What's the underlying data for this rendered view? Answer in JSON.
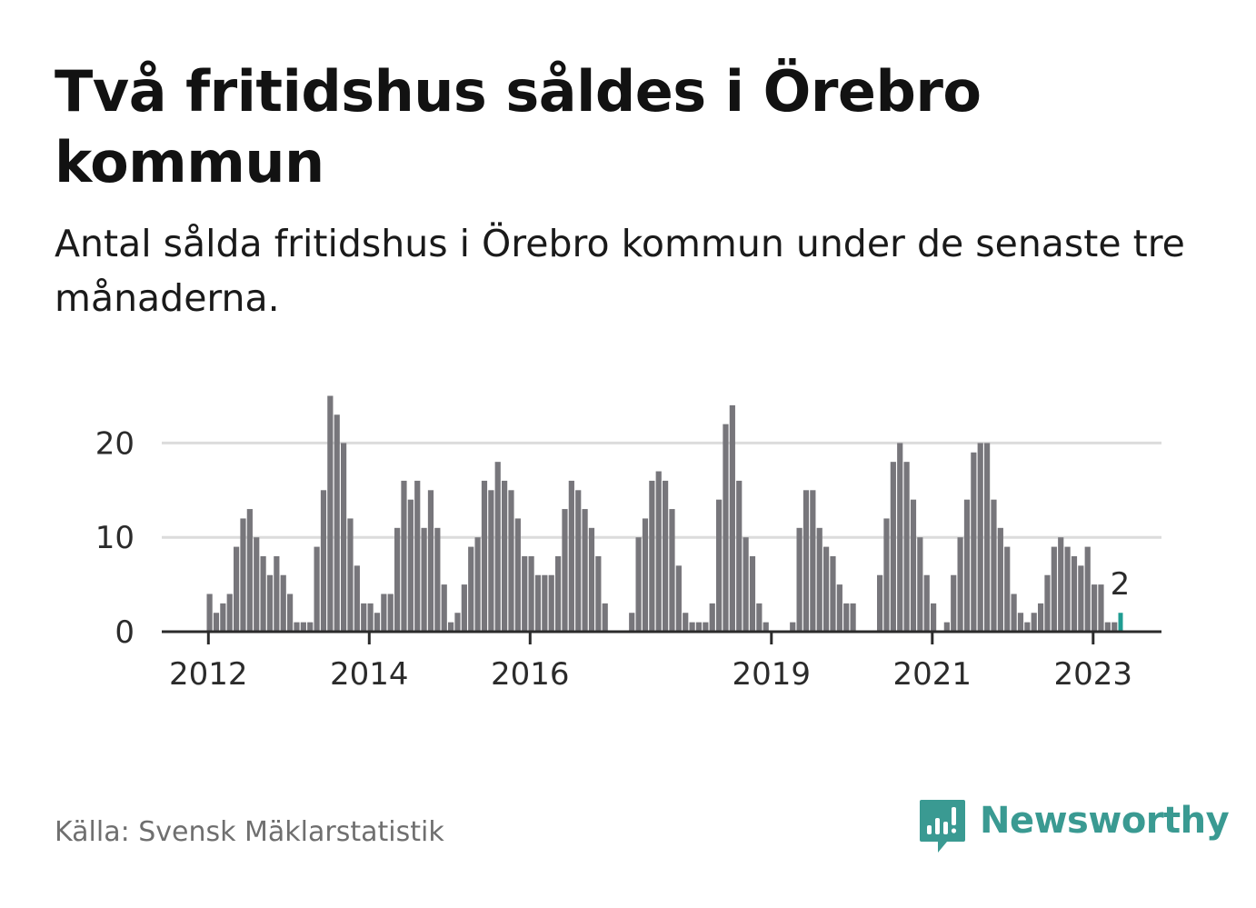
{
  "title": "Två fritidshus såldes i Örebro kommun",
  "subtitle": "Antal sålda fritidshus i Örebro kommun under de senaste tre månaderna.",
  "source": "Källa: Svensk Mäklarstatistik",
  "brand": {
    "name": "Newsworthy",
    "icon": "newsworthy-bar-chart-icon",
    "color": "#3a9a92"
  },
  "chart_data": {
    "type": "bar",
    "x_unit": "month",
    "start_month": "2011-06",
    "y_ticks": [
      0,
      10,
      20
    ],
    "x_ticks": [
      "2012",
      "2014",
      "2016",
      "2019",
      "2021",
      "2023"
    ],
    "ylim": [
      0,
      25
    ],
    "grid": true,
    "bar_color": "#77767b",
    "highlight_color": "#1f9c92",
    "highlight_label": "2",
    "values": [
      0,
      0,
      0,
      0,
      0,
      0,
      0,
      4,
      2,
      3,
      4,
      9,
      12,
      13,
      10,
      8,
      6,
      8,
      6,
      4,
      1,
      1,
      1,
      9,
      15,
      25,
      23,
      20,
      12,
      7,
      3,
      3,
      2,
      4,
      4,
      11,
      16,
      14,
      16,
      11,
      15,
      11,
      5,
      1,
      2,
      5,
      9,
      10,
      16,
      15,
      18,
      16,
      15,
      12,
      8,
      8,
      6,
      6,
      6,
      8,
      13,
      16,
      15,
      13,
      11,
      8,
      3,
      0,
      0,
      0,
      2,
      10,
      12,
      16,
      17,
      16,
      13,
      7,
      2,
      1,
      1,
      1,
      3,
      14,
      22,
      24,
      16,
      10,
      8,
      3,
      1,
      0,
      0,
      0,
      1,
      11,
      15,
      15,
      11,
      9,
      8,
      5,
      3,
      3,
      0,
      0,
      0,
      6,
      12,
      18,
      20,
      18,
      14,
      10,
      6,
      3,
      0,
      1,
      6,
      10,
      14,
      19,
      20,
      20,
      14,
      11,
      9,
      4,
      2,
      1,
      2,
      3,
      6,
      9,
      10,
      9,
      8,
      7,
      9,
      5,
      5,
      1,
      1,
      2
    ]
  }
}
